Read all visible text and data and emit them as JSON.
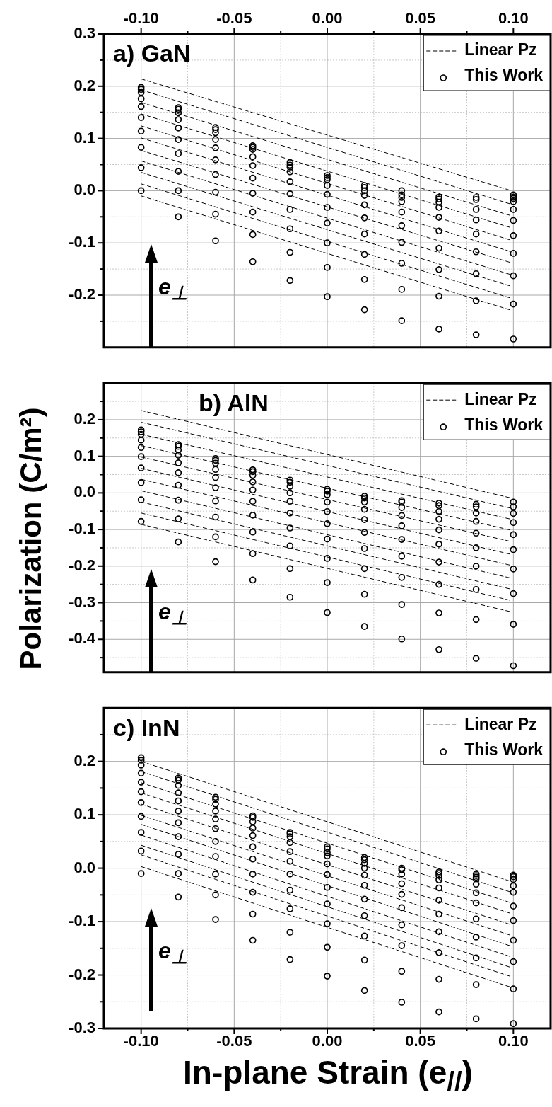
{
  "chart_data": [
    {
      "type": "scatter",
      "title": "a) GaN",
      "xlim": [
        -0.12,
        0.12
      ],
      "xticks": [
        {
          "value": -0.1,
          "label": null
        },
        {
          "value": -0.075,
          "label": null
        },
        {
          "value": -0.05,
          "label": null
        },
        {
          "value": -0.025,
          "label": null
        },
        {
          "value": 0,
          "label": null
        },
        {
          "value": 0.025,
          "label": null
        },
        {
          "value": 0.05,
          "label": null
        },
        {
          "value": 0.075,
          "label": null
        },
        {
          "value": 0.1,
          "label": null
        }
      ],
      "x2lim": [
        -0.12,
        0.12
      ],
      "x2ticks": [
        {
          "value": -0.1,
          "label": "-0.10"
        },
        {
          "value": -0.075,
          "label": null
        },
        -0.05,
        {
          "value": -0.025,
          "label": null
        },
        {
          "value": 0,
          "label": "0.00"
        },
        {
          "value": 0.025,
          "label": null
        },
        0.05,
        {
          "value": 0.075,
          "label": null
        },
        {
          "value": 0.1,
          "label": "0.10"
        }
      ],
      "ylim": [
        -0.3,
        0.3
      ],
      "yticks": [
        0.3,
        {
          "value": 0.25,
          "label": null
        },
        0.2,
        {
          "value": 0.15,
          "label": null
        },
        0.1,
        {
          "value": 0.05,
          "label": null
        },
        {
          "value": 0,
          "label": "0.0"
        },
        {
          "value": -0.05,
          "label": null
        },
        -0.1,
        {
          "value": -0.15,
          "label": null
        },
        -0.2,
        {
          "value": -0.25,
          "label": null
        }
      ],
      "tick_labels": "y",
      "grid": true,
      "legend": "top right",
      "annotations": [
        "e$_{⊥}$"
      ],
      "series": [
        {
          "name": "Linear Pz",
          "type": "line",
          "color": "#000000",
          "line_style": "dashed",
          "x": [
            -0.1,
            0.098
          ],
          "values": [
            0.214,
            0.001
          ]
        },
        {
          "type": "line",
          "color": "#000000",
          "line_style": "dashed",
          "x": [
            -0.1,
            0.098
          ],
          "values": [
            0.193,
            -0.025
          ]
        },
        {
          "type": "line",
          "color": "#000000",
          "line_style": "dashed",
          "x": [
            -0.1,
            0.098
          ],
          "values": [
            0.169,
            -0.047
          ]
        },
        {
          "type": "line",
          "color": "#000000",
          "line_style": "dashed",
          "x": [
            -0.1,
            0.098
          ],
          "values": [
            0.147,
            -0.07
          ]
        },
        {
          "type": "line",
          "color": "#000000",
          "line_style": "dashed",
          "x": [
            -0.1,
            0.098
          ],
          "values": [
            0.124,
            -0.094
          ]
        },
        {
          "type": "line",
          "color": "#000000",
          "line_style": "dashed",
          "x": [
            -0.1,
            0.098
          ],
          "values": [
            0.101,
            -0.116
          ]
        },
        {
          "type": "line",
          "color": "#000000",
          "line_style": "dashed",
          "x": [
            -0.1,
            0.098
          ],
          "values": [
            0.077,
            -0.137
          ]
        },
        {
          "type": "line",
          "color": "#000000",
          "line_style": "dashed",
          "x": [
            -0.1,
            0.098
          ],
          "values": [
            0.057,
            -0.16
          ]
        },
        {
          "type": "line",
          "color": "#000000",
          "line_style": "dashed",
          "x": [
            -0.1,
            0.098
          ],
          "values": [
            0.035,
            -0.182
          ]
        },
        {
          "type": "line",
          "color": "#000000",
          "line_style": "dashed",
          "x": [
            -0.1,
            0.098
          ],
          "values": [
            0.013,
            -0.205
          ]
        },
        {
          "type": "line",
          "color": "#000000",
          "line_style": "dashed",
          "x": [
            -0.1,
            0.098
          ],
          "values": [
            -0.01,
            -0.228
          ]
        },
        {
          "name": "This Work",
          "type": "scatter",
          "marker": "circle",
          "color": "#000000",
          "x": [
            -0.1,
            -0.1,
            -0.1,
            -0.1,
            -0.1,
            -0.1,
            -0.1,
            -0.1,
            -0.1,
            -0.1,
            -0.08,
            -0.08,
            -0.08,
            -0.08,
            -0.08,
            -0.08,
            -0.08,
            -0.08,
            -0.08,
            -0.08,
            -0.06,
            -0.06,
            -0.06,
            -0.06,
            -0.06,
            -0.06,
            -0.06,
            -0.06,
            -0.06,
            -0.06,
            -0.04,
            -0.04,
            -0.04,
            -0.04,
            -0.04,
            -0.04,
            -0.04,
            -0.04,
            -0.04,
            -0.04,
            -0.02,
            -0.02,
            -0.02,
            -0.02,
            -0.02,
            -0.02,
            -0.02,
            -0.02,
            -0.02,
            -0.02,
            0,
            0,
            0,
            0,
            0,
            0,
            0,
            0,
            0,
            0,
            0.02,
            0.02,
            0.02,
            0.02,
            0.02,
            0.02,
            0.02,
            0.02,
            0.02,
            0.02,
            0.04,
            0.04,
            0.04,
            0.04,
            0.04,
            0.04,
            0.04,
            0.04,
            0.04,
            0.04,
            0.06,
            0.06,
            0.06,
            0.06,
            0.06,
            0.06,
            0.06,
            0.06,
            0.06,
            0.06,
            0.08,
            0.08,
            0.08,
            0.08,
            0.08,
            0.08,
            0.08,
            0.08,
            0.08,
            0.1,
            0.1,
            0.1,
            0.1,
            0.1,
            0.1,
            0.1,
            0.1,
            0.1,
            0.1,
            0.1
          ],
          "values": [
            0.198,
            0.194,
            0.188,
            0.176,
            0.161,
            0.14,
            0.114,
            0.083,
            0.044,
            0,
            0.159,
            0.156,
            0.149,
            0.136,
            0.12,
            0.098,
            0.071,
            0.037,
            0,
            -0.05,
            0.121,
            0.117,
            0.111,
            0.098,
            0.082,
            0.059,
            0.031,
            -0.003,
            -0.045,
            -0.096,
            0.086,
            0.083,
            0.079,
            0.065,
            0.048,
            0.024,
            -0.005,
            -0.041,
            -0.084,
            -0.136,
            0.054,
            0.049,
            0.045,
            0.036,
            0.017,
            -0.006,
            -0.036,
            -0.073,
            -0.118,
            -0.172,
            0.029,
            0.025,
            0.021,
            0.01,
            -0.007,
            -0.032,
            -0.062,
            -0.1,
            -0.147,
            -0.203,
            0.01,
            0.006,
            0,
            -0.009,
            -0.027,
            -0.052,
            -0.083,
            -0.122,
            -0.17,
            -0.228,
            0,
            -0.008,
            -0.013,
            -0.021,
            -0.041,
            -0.067,
            -0.099,
            -0.139,
            -0.189,
            -0.249,
            -0.012,
            -0.016,
            -0.022,
            -0.032,
            -0.051,
            -0.077,
            -0.11,
            -0.151,
            -0.202,
            -0.265,
            -0.013,
            -0.017,
            -0.036,
            -0.056,
            -0.083,
            -0.117,
            -0.159,
            -0.211,
            -0.276,
            -0.008,
            -0.012,
            -0.015,
            -0.021,
            -0.036,
            -0.057,
            -0.086,
            -0.12,
            -0.163,
            -0.217,
            -0.284
          ]
        }
      ]
    },
    {
      "type": "scatter",
      "title": "b) AlN",
      "ylabel": "Polarization (C/m²)",
      "xlim": [
        -0.12,
        0.12
      ],
      "xticks": [
        {
          "value": -0.1,
          "label": null
        },
        {
          "value": -0.075,
          "label": null
        },
        {
          "value": -0.05,
          "label": null
        },
        {
          "value": -0.025,
          "label": null
        },
        {
          "value": 0,
          "label": null
        },
        {
          "value": 0.025,
          "label": null
        },
        {
          "value": 0.05,
          "label": null
        },
        {
          "value": 0.075,
          "label": null
        },
        {
          "value": 0.1,
          "label": null
        }
      ],
      "ylim": [
        -0.49,
        0.3
      ],
      "yticks": [
        {
          "value": 0.25,
          "label": null
        },
        0.2,
        {
          "value": 0.15,
          "label": null
        },
        0.1,
        {
          "value": 0.05,
          "label": null
        },
        {
          "value": 0,
          "label": "0.0"
        },
        {
          "value": -0.05,
          "label": null
        },
        -0.1,
        {
          "value": -0.15,
          "label": null
        },
        -0.2,
        {
          "value": -0.25,
          "label": null
        },
        -0.3,
        {
          "value": -0.35,
          "label": null
        },
        -0.4,
        {
          "value": -0.45,
          "label": null
        }
      ],
      "tick_labels": "y",
      "grid": true,
      "legend": "top right",
      "annotations": [
        "e$_{⊥}$"
      ],
      "series": [
        {
          "name": "Linear Pz",
          "type": "line",
          "color": "#000000",
          "line_style": "dashed",
          "x": [
            -0.1,
            0.098
          ],
          "values": [
            0.225,
            -0.013
          ]
        },
        {
          "type": "line",
          "color": "#000000",
          "line_style": "dashed",
          "x": [
            -0.1,
            0.098
          ],
          "values": [
            0.193,
            -0.041
          ]
        },
        {
          "type": "line",
          "color": "#000000",
          "line_style": "dashed",
          "x": [
            -0.1,
            0.098
          ],
          "values": [
            0.16,
            -0.071
          ]
        },
        {
          "type": "line",
          "color": "#000000",
          "line_style": "dashed",
          "x": [
            -0.1,
            0.098
          ],
          "values": [
            0.129,
            -0.101
          ]
        },
        {
          "type": "line",
          "color": "#000000",
          "line_style": "dashed",
          "x": [
            -0.1,
            0.098
          ],
          "values": [
            0.098,
            -0.132
          ]
        },
        {
          "type": "line",
          "color": "#000000",
          "line_style": "dashed",
          "x": [
            -0.1,
            0.098
          ],
          "values": [
            0.067,
            -0.167
          ]
        },
        {
          "type": "line",
          "color": "#000000",
          "line_style": "dashed",
          "x": [
            -0.1,
            0.098
          ],
          "values": [
            0.037,
            -0.197
          ]
        },
        {
          "type": "line",
          "color": "#000000",
          "line_style": "dashed",
          "x": [
            -0.1,
            0.098
          ],
          "values": [
            0.006,
            -0.232
          ]
        },
        {
          "type": "line",
          "color": "#000000",
          "line_style": "dashed",
          "x": [
            -0.1,
            0.098
          ],
          "values": [
            -0.025,
            -0.262
          ]
        },
        {
          "type": "line",
          "color": "#000000",
          "line_style": "dashed",
          "x": [
            -0.1,
            0.098
          ],
          "values": [
            -0.055,
            -0.293
          ]
        },
        {
          "type": "line",
          "color": "#000000",
          "line_style": "dashed",
          "x": [
            -0.1,
            0.098
          ],
          "values": [
            -0.086,
            -0.324
          ]
        },
        {
          "name": "This Work",
          "type": "scatter",
          "marker": "circle",
          "color": "#000000",
          "x": [
            -0.1,
            -0.1,
            -0.1,
            -0.1,
            -0.1,
            -0.1,
            -0.1,
            -0.1,
            -0.1,
            -0.1,
            -0.08,
            -0.08,
            -0.08,
            -0.08,
            -0.08,
            -0.08,
            -0.08,
            -0.08,
            -0.08,
            -0.08,
            -0.06,
            -0.06,
            -0.06,
            -0.06,
            -0.06,
            -0.06,
            -0.06,
            -0.06,
            -0.06,
            -0.06,
            -0.04,
            -0.04,
            -0.04,
            -0.04,
            -0.04,
            -0.04,
            -0.04,
            -0.04,
            -0.04,
            -0.04,
            -0.02,
            -0.02,
            -0.02,
            -0.02,
            -0.02,
            -0.02,
            -0.02,
            -0.02,
            -0.02,
            -0.02,
            0,
            0,
            0,
            0,
            0,
            0,
            0,
            0,
            0,
            0,
            0.02,
            0.02,
            0.02,
            0.02,
            0.02,
            0.02,
            0.02,
            0.02,
            0.02,
            0.02,
            0.04,
            0.04,
            0.04,
            0.04,
            0.04,
            0.04,
            0.04,
            0.04,
            0.04,
            0.04,
            0.06,
            0.06,
            0.06,
            0.06,
            0.06,
            0.06,
            0.06,
            0.06,
            0.06,
            0.06,
            0.08,
            0.08,
            0.08,
            0.08,
            0.08,
            0.08,
            0.08,
            0.08,
            0.08,
            0.08,
            0.1,
            0.1,
            0.1,
            0.1,
            0.1,
            0.1,
            0.1,
            0.1,
            0.1,
            0.1
          ],
          "values": [
            0.172,
            0.167,
            0.16,
            0.144,
            0.124,
            0.099,
            0.068,
            0.028,
            -0.019,
            -0.078,
            0.132,
            0.127,
            0.117,
            0.103,
            0.082,
            0.055,
            0.021,
            -0.02,
            -0.071,
            -0.134,
            0.094,
            0.089,
            0.081,
            0.064,
            0.042,
            0.014,
            -0.022,
            -0.066,
            -0.12,
            -0.188,
            0.063,
            0.058,
            0.048,
            0.03,
            0.008,
            -0.023,
            -0.061,
            -0.107,
            -0.166,
            -0.238,
            0.035,
            0.029,
            0.018,
            0,
            -0.023,
            -0.055,
            -0.096,
            -0.145,
            -0.207,
            -0.285,
            0.01,
            0.005,
            -0.005,
            -0.025,
            -0.051,
            -0.084,
            -0.126,
            -0.179,
            -0.245,
            -0.327,
            -0.009,
            -0.014,
            -0.025,
            -0.045,
            -0.073,
            -0.108,
            -0.152,
            -0.207,
            -0.277,
            -0.365,
            -0.021,
            -0.025,
            -0.04,
            -0.062,
            -0.09,
            -0.127,
            -0.173,
            -0.231,
            -0.305,
            -0.399,
            -0.028,
            -0.035,
            -0.051,
            -0.072,
            -0.101,
            -0.14,
            -0.189,
            -0.25,
            -0.328,
            -0.428,
            -0.031,
            -0.038,
            -0.055,
            -0.078,
            -0.11,
            -0.15,
            -0.2,
            -0.264,
            -0.346,
            -0.452,
            -0.025,
            -0.038,
            -0.056,
            -0.081,
            -0.114,
            -0.155,
            -0.208,
            -0.275,
            -0.359,
            -0.472
          ]
        }
      ]
    },
    {
      "type": "scatter",
      "title": "c) InN",
      "xlabel": "In-plane Strain (e$_{//}$)",
      "xlim": [
        -0.12,
        0.12
      ],
      "xticks": [
        {
          "value": -0.1,
          "label": "-0.10"
        },
        {
          "value": -0.075,
          "label": null
        },
        -0.05,
        {
          "value": -0.025,
          "label": null
        },
        {
          "value": 0,
          "label": "0.00"
        },
        {
          "value": 0.025,
          "label": null
        },
        0.05,
        {
          "value": 0.075,
          "label": null
        },
        {
          "value": 0.1,
          "label": "0.10"
        }
      ],
      "ylim": [
        -0.3,
        0.3
      ],
      "yticks": [
        {
          "value": 0.25,
          "label": null
        },
        0.2,
        {
          "value": 0.15,
          "label": null
        },
        0.1,
        {
          "value": 0.05,
          "label": null
        },
        {
          "value": 0,
          "label": "0.0"
        },
        {
          "value": -0.05,
          "label": null
        },
        -0.1,
        {
          "value": -0.15,
          "label": null
        },
        -0.2,
        {
          "value": -0.25,
          "label": null
        },
        -0.3
      ],
      "grid": true,
      "legend": "top right",
      "annotations": [
        "e$_{⊥}$"
      ],
      "series": [
        {
          "name": "Linear Pz",
          "type": "line",
          "color": "#000000",
          "line_style": "dashed",
          "x": [
            -0.1,
            0.098
          ],
          "values": [
            0.2,
            -0.024
          ]
        },
        {
          "type": "line",
          "color": "#000000",
          "line_style": "dashed",
          "x": [
            -0.1,
            0.098
          ],
          "values": [
            0.181,
            -0.044
          ]
        },
        {
          "type": "line",
          "color": "#000000",
          "line_style": "dashed",
          "x": [
            -0.1,
            0.098
          ],
          "values": [
            0.16,
            -0.064
          ]
        },
        {
          "type": "line",
          "color": "#000000",
          "line_style": "dashed",
          "x": [
            -0.1,
            0.098
          ],
          "values": [
            0.141,
            -0.084
          ]
        },
        {
          "type": "line",
          "color": "#000000",
          "line_style": "dashed",
          "x": [
            -0.1,
            0.098
          ],
          "values": [
            0.12,
            -0.105
          ]
        },
        {
          "type": "line",
          "color": "#000000",
          "line_style": "dashed",
          "x": [
            -0.1,
            0.098
          ],
          "values": [
            0.099,
            -0.125
          ]
        },
        {
          "type": "line",
          "color": "#000000",
          "line_style": "dashed",
          "x": [
            -0.1,
            0.098
          ],
          "values": [
            0.082,
            -0.145
          ]
        },
        {
          "type": "line",
          "color": "#000000",
          "line_style": "dashed",
          "x": [
            -0.1,
            0.098
          ],
          "values": [
            0.062,
            -0.165
          ]
        },
        {
          "type": "line",
          "color": "#000000",
          "line_style": "dashed",
          "x": [
            -0.1,
            0.098
          ],
          "values": [
            0.043,
            -0.185
          ]
        },
        {
          "type": "line",
          "color": "#000000",
          "line_style": "dashed",
          "x": [
            -0.1,
            0.098
          ],
          "values": [
            0.025,
            -0.202
          ]
        },
        {
          "type": "line",
          "color": "#000000",
          "line_style": "dashed",
          "x": [
            -0.1,
            0.098
          ],
          "values": [
            0.003,
            -0.222
          ]
        },
        {
          "name": "This Work",
          "type": "scatter",
          "marker": "circle",
          "color": "#000000",
          "x": [
            -0.1,
            -0.1,
            -0.1,
            -0.1,
            -0.1,
            -0.1,
            -0.1,
            -0.1,
            -0.1,
            -0.1,
            -0.1,
            -0.08,
            -0.08,
            -0.08,
            -0.08,
            -0.08,
            -0.08,
            -0.08,
            -0.08,
            -0.08,
            -0.08,
            -0.08,
            -0.06,
            -0.06,
            -0.06,
            -0.06,
            -0.06,
            -0.06,
            -0.06,
            -0.06,
            -0.06,
            -0.06,
            -0.06,
            -0.04,
            -0.04,
            -0.04,
            -0.04,
            -0.04,
            -0.04,
            -0.04,
            -0.04,
            -0.04,
            -0.04,
            -0.04,
            -0.02,
            -0.02,
            -0.02,
            -0.02,
            -0.02,
            -0.02,
            -0.02,
            -0.02,
            -0.02,
            -0.02,
            -0.02,
            0,
            0,
            0,
            0,
            0,
            0,
            0,
            0,
            0,
            0,
            0,
            0.02,
            0.02,
            0.02,
            0.02,
            0.02,
            0.02,
            0.02,
            0.02,
            0.02,
            0.02,
            0.02,
            0.04,
            0.04,
            0.04,
            0.04,
            0.04,
            0.04,
            0.04,
            0.04,
            0.04,
            0.04,
            0.06,
            0.06,
            0.06,
            0.06,
            0.06,
            0.06,
            0.06,
            0.06,
            0.06,
            0.06,
            0.06,
            0.08,
            0.08,
            0.08,
            0.08,
            0.08,
            0.08,
            0.08,
            0.08,
            0.08,
            0.08,
            0.08,
            0.08,
            0.1,
            0.1,
            0.1,
            0.1,
            0.1,
            0.1,
            0.1,
            0.1,
            0.1,
            0.1,
            0.1
          ],
          "values": [
            0.207,
            0.202,
            0.193,
            0.178,
            0.161,
            0.143,
            0.123,
            0.097,
            0.067,
            0.032,
            -0.01,
            0.169,
            0.165,
            0.155,
            0.141,
            0.126,
            0.107,
            0.085,
            0.059,
            0.026,
            -0.01,
            -0.054,
            0.133,
            0.129,
            0.12,
            0.107,
            0.092,
            0.074,
            0.05,
            0.022,
            -0.011,
            -0.05,
            -0.096,
            0.098,
            0.095,
            0.087,
            0.075,
            0.061,
            0.04,
            0.017,
            -0.011,
            -0.045,
            -0.086,
            -0.135,
            0.067,
            0.064,
            0.059,
            0.048,
            0.031,
            0.013,
            -0.011,
            -0.041,
            -0.076,
            -0.12,
            -0.171,
            0.04,
            0.036,
            0.029,
            0.023,
            0.008,
            -0.012,
            -0.036,
            -0.067,
            -0.104,
            -0.148,
            -0.202,
            0.02,
            0.016,
            0.009,
            0,
            -0.013,
            -0.032,
            -0.058,
            -0.089,
            -0.127,
            -0.172,
            -0.229,
            0,
            -0.003,
            -0.011,
            -0.029,
            -0.049,
            -0.074,
            -0.106,
            -0.145,
            -0.193,
            -0.251,
            -0.007,
            -0.01,
            -0.014,
            -0.022,
            -0.037,
            -0.06,
            -0.086,
            -0.119,
            -0.158,
            -0.208,
            -0.269,
            -0.011,
            -0.014,
            -0.017,
            -0.02,
            -0.03,
            -0.046,
            -0.065,
            -0.095,
            -0.129,
            -0.168,
            -0.218,
            -0.282,
            -0.013,
            -0.016,
            -0.021,
            -0.033,
            -0.045,
            -0.071,
            -0.098,
            -0.135,
            -0.175,
            -0.226,
            -0.291
          ]
        }
      ]
    }
  ]
}
